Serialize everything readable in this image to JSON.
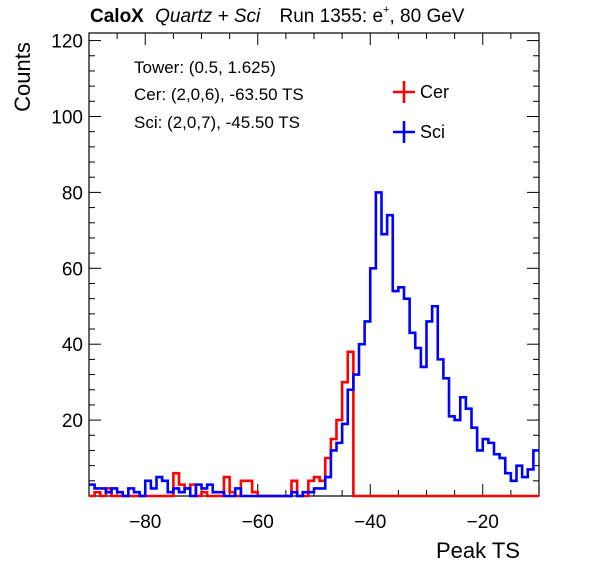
{
  "header": {
    "experiment": "CaloX",
    "detector": "Quartz + Sci",
    "run_prefix": "Run 1355: e",
    "particle_charge": "+",
    "run_suffix": ", 80 GeV"
  },
  "info": {
    "tower": "Tower: (0.5, 1.625)",
    "cer": "Cer: (2,0,6), -63.50 TS",
    "sci": "Sci: (2,0,7), -45.50 TS"
  },
  "chart_data": {
    "type": "histogram",
    "xlabel": "Peak TS",
    "ylabel": "Counts",
    "xlim": [
      -90,
      -10
    ],
    "ylim": [
      0,
      122
    ],
    "x_ticks": [
      -80,
      -60,
      -40,
      -20
    ],
    "y_ticks": [
      20,
      40,
      60,
      80,
      100,
      120
    ],
    "bin_width": 1,
    "bin_start": -90,
    "legend_position": "top-right",
    "series": [
      {
        "name": "Cer",
        "color": "#ff0000",
        "values": [
          0,
          1,
          0,
          2,
          0,
          0,
          0,
          0,
          0,
          0,
          0,
          0,
          0,
          0,
          0,
          6,
          3,
          2,
          3,
          0,
          1,
          0,
          0,
          0,
          5,
          1,
          0,
          4,
          4,
          1,
          0,
          0,
          0,
          0,
          0,
          0,
          4,
          0,
          0,
          4,
          5,
          4,
          10,
          15,
          20,
          30,
          38,
          0,
          0,
          0,
          0,
          0,
          0,
          0,
          0,
          0,
          0,
          0,
          0,
          0,
          0,
          0,
          0,
          0,
          0,
          0,
          0,
          0,
          0,
          0,
          0,
          0,
          0,
          0,
          0,
          0,
          0,
          0,
          0,
          0
        ],
        "raw": [
          [
            -90,
            0
          ],
          [
            -89,
            1
          ],
          [
            -88,
            0
          ],
          [
            -87,
            2
          ],
          [
            -86,
            0
          ],
          [
            -85,
            0
          ],
          [
            -84,
            0
          ],
          [
            -83,
            0
          ],
          [
            -82,
            0
          ],
          [
            -81,
            0
          ],
          [
            -80,
            0
          ],
          [
            -79,
            0
          ],
          [
            -78,
            0
          ],
          [
            -77,
            0
          ],
          [
            -76,
            0
          ],
          [
            -75,
            6
          ],
          [
            -74,
            3
          ],
          [
            -73,
            2
          ],
          [
            -72,
            3
          ],
          [
            -71,
            0
          ],
          [
            -70,
            1
          ],
          [
            -69,
            0
          ],
          [
            -68,
            0
          ],
          [
            -67,
            0
          ],
          [
            -66,
            5
          ],
          [
            -65,
            1
          ],
          [
            -64,
            0
          ],
          [
            -63,
            4
          ],
          [
            -62,
            4
          ],
          [
            -61,
            1
          ]
        ]
      },
      {
        "name": "Sci",
        "color": "#0000ff",
        "values": [
          3,
          2,
          2,
          1,
          2,
          1,
          0,
          2,
          1,
          0,
          4,
          2,
          5,
          4,
          1,
          2,
          1,
          2,
          0,
          3,
          2,
          3,
          1,
          1,
          0,
          0,
          2,
          0,
          0,
          0,
          0,
          0,
          0,
          0,
          0,
          0,
          1,
          0,
          1,
          1,
          2,
          2,
          5,
          12,
          14,
          19,
          28,
          32,
          40,
          46,
          60,
          80,
          69,
          74,
          54,
          55,
          52,
          43,
          39,
          34,
          46,
          50,
          36,
          31,
          21,
          20,
          26,
          23,
          18,
          12,
          15,
          14,
          11,
          10,
          6,
          4,
          8,
          5,
          7,
          12
        ]
      }
    ]
  }
}
